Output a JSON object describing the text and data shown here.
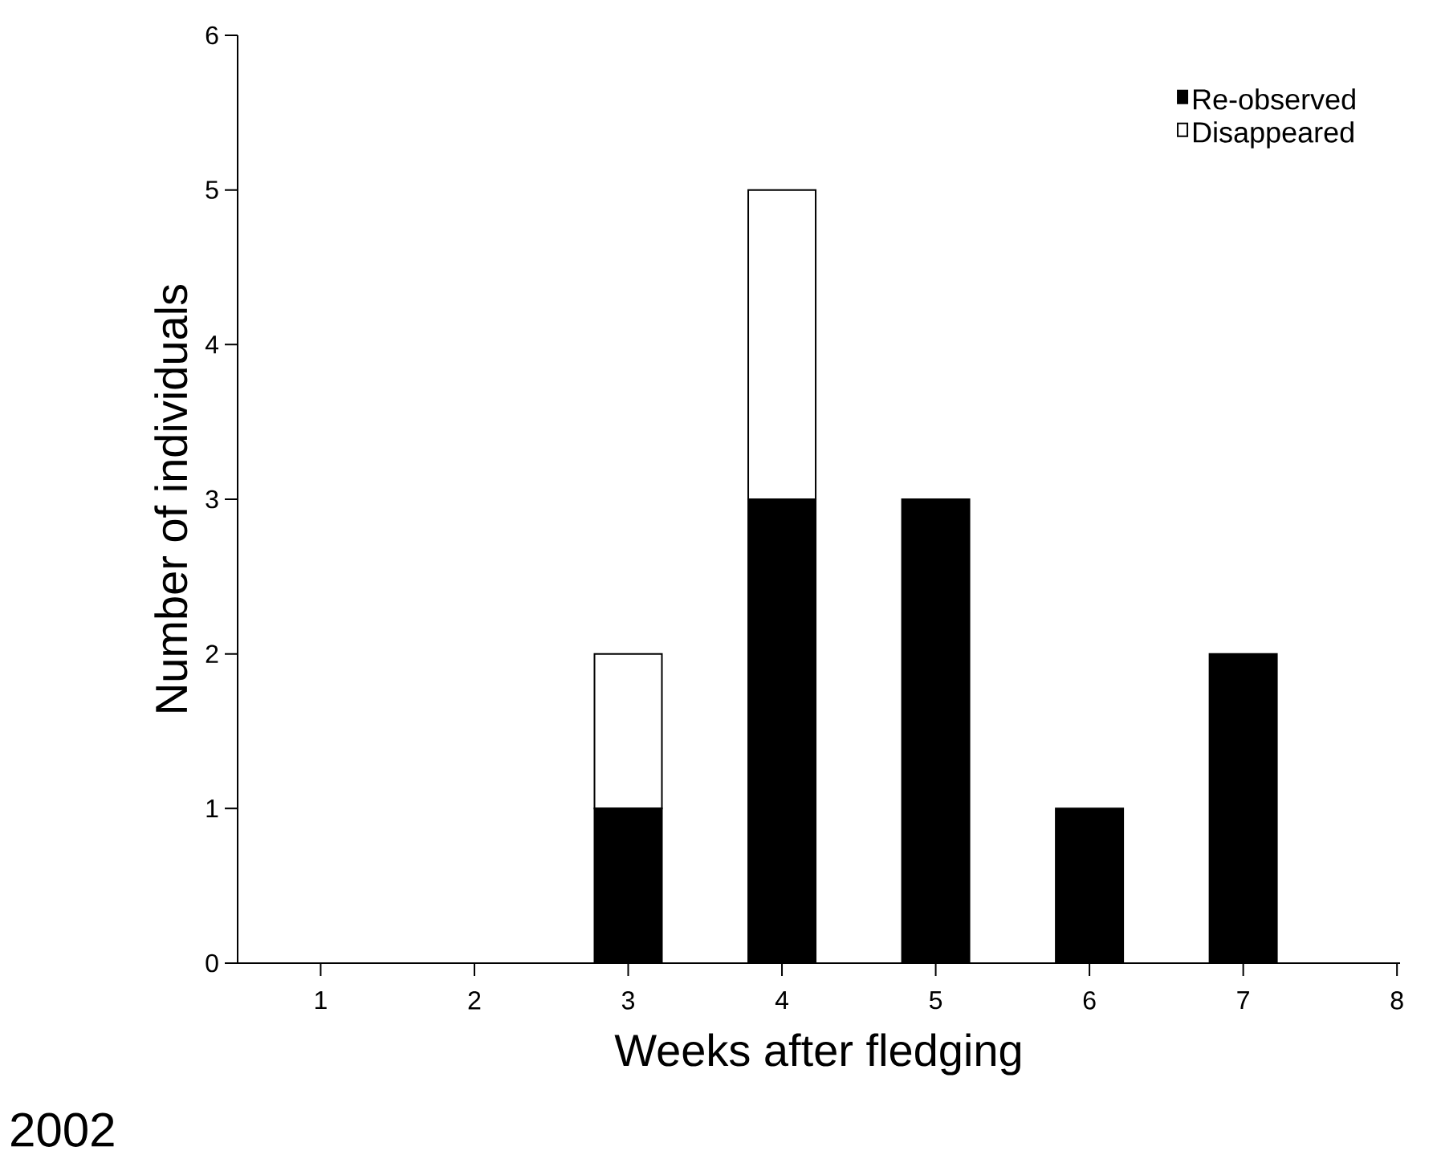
{
  "chart_data": {
    "type": "bar",
    "stacked": true,
    "xlabel": "Weeks after fledging",
    "ylabel": "Number of individuals",
    "categories": [
      "1",
      "2",
      "3",
      "4",
      "5",
      "6",
      "7",
      "8"
    ],
    "series": [
      {
        "name": "Re-observed",
        "color": "#000000",
        "values": [
          0,
          0,
          1,
          3,
          3,
          1,
          2,
          0
        ]
      },
      {
        "name": "Disappeared",
        "color": "#ffffff",
        "values": [
          0,
          0,
          1,
          2,
          0,
          0,
          0,
          0
        ]
      }
    ],
    "ylim": [
      0,
      6
    ],
    "yticks": [
      0,
      1,
      2,
      3,
      4,
      5,
      6
    ],
    "legend": "top right",
    "annotations": [
      "2002"
    ]
  }
}
